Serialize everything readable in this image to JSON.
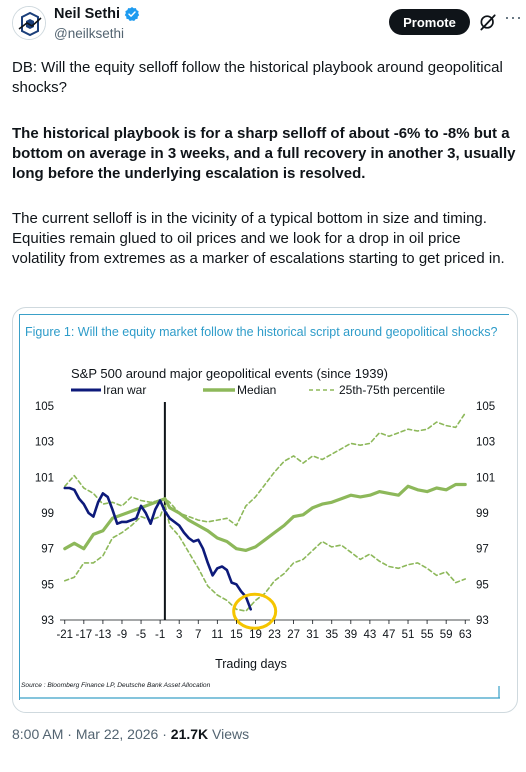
{
  "author": {
    "name": "Neil Sethi",
    "handle": "@neilksethi",
    "avatar_icon": "logo-avatar-icon",
    "verified_color": "#1d9bf0"
  },
  "header": {
    "promote_label": "Promote"
  },
  "tweet": {
    "paragraph_1": "DB: Will the equity selloff follow the historical playbook around geopolitical shocks?",
    "paragraph_2": "The historical playbook is for a sharp selloff of about -6% to -8% but a bottom on average in 3 weeks, and a full recovery in another 3, usually long before the underlying escalation is resolved.",
    "paragraph_3": "The current selloff is in the vicinity of a typical bottom in size and timing. Equities remain glued to oil prices and we look for a drop in oil price volatility from extremes as a marker of escalations starting to get priced in."
  },
  "figure": {
    "caption": "Figure 1: Will the equity market follow the historical script around geopolitical shocks?",
    "source": "Source : Bloomberg Finance LP, Deutsche Bank Asset Allocation"
  },
  "chart_data": {
    "type": "line",
    "title": "S&P 500 around major geopolitical events (since 1939)",
    "xlabel": "Trading days",
    "ylabel": "",
    "xlim": [
      -22,
      64
    ],
    "ylim": [
      93,
      105
    ],
    "x_ticks": [
      -21,
      -17,
      -13,
      -9,
      -5,
      -1,
      3,
      7,
      11,
      15,
      19,
      23,
      27,
      31,
      35,
      39,
      43,
      47,
      51,
      55,
      59,
      63
    ],
    "y_ticks": [
      93,
      95,
      97,
      99,
      101,
      103,
      105
    ],
    "event_line_x": 0,
    "legend_position": "top",
    "colors": {
      "iran": "#0d1a7a",
      "median": "#8db85a",
      "pct": "#8db85a",
      "highlight": "#f5c500"
    },
    "series": [
      {
        "name": "Iran war",
        "style": "solid-thick",
        "x": [
          -21,
          -20,
          -19,
          -18,
          -17,
          -16,
          -15,
          -14,
          -13,
          -12,
          -11,
          -10,
          -9,
          -8,
          -7,
          -6,
          -5,
          -4,
          -3,
          -2,
          -1,
          0,
          1,
          2,
          3,
          4,
          5,
          6,
          7,
          8,
          9,
          10,
          11,
          12,
          13,
          14,
          15,
          16,
          17,
          18
        ],
        "values": [
          100.4,
          100.4,
          100.3,
          99.8,
          99.5,
          99.0,
          98.8,
          99.6,
          100.1,
          99.9,
          99.2,
          98.4,
          98.5,
          98.5,
          98.6,
          98.7,
          99.4,
          99.0,
          98.4,
          99.2,
          99.7,
          99.1,
          98.7,
          98.5,
          98.3,
          97.9,
          97.6,
          97.4,
          97.5,
          97.0,
          96.2,
          95.5,
          95.9,
          96.0,
          95.8,
          95.1,
          95.0,
          94.6,
          94.3,
          93.6
        ]
      },
      {
        "name": "Median",
        "style": "solid-medium",
        "x": [
          -21,
          -19,
          -17,
          -15,
          -13,
          -11,
          -9,
          -7,
          -5,
          -3,
          -1,
          0,
          1,
          3,
          5,
          7,
          9,
          11,
          13,
          15,
          17,
          19,
          21,
          23,
          25,
          27,
          29,
          31,
          33,
          35,
          37,
          39,
          41,
          43,
          45,
          47,
          49,
          51,
          53,
          55,
          57,
          59,
          61,
          63
        ],
        "values": [
          97.0,
          97.3,
          97.0,
          97.8,
          98.0,
          98.7,
          98.9,
          99.1,
          99.3,
          99.5,
          99.7,
          99.8,
          99.3,
          99.0,
          98.6,
          98.3,
          98.0,
          97.6,
          97.4,
          97.0,
          96.9,
          97.1,
          97.5,
          97.9,
          98.3,
          98.8,
          98.9,
          99.3,
          99.5,
          99.6,
          99.8,
          100.0,
          99.9,
          100.0,
          100.2,
          100.1,
          100.0,
          100.5,
          100.3,
          100.2,
          100.4,
          100.3,
          100.6,
          100.6
        ]
      },
      {
        "name": "25th-75th percentile",
        "style": "dashed",
        "x": [
          -21,
          -19,
          -17,
          -15,
          -13,
          -11,
          -9,
          -7,
          -5,
          -3,
          -1,
          0,
          1,
          3,
          5,
          7,
          9,
          11,
          13,
          15,
          17,
          19,
          21,
          23,
          25,
          27,
          29,
          31,
          33,
          35,
          37,
          39,
          41,
          43,
          45,
          47,
          49,
          51,
          53,
          55,
          57,
          59,
          61,
          63
        ],
        "values": [
          100.5,
          101.1,
          100.4,
          100.1,
          99.5,
          99.6,
          99.4,
          99.9,
          99.7,
          99.6,
          99.7,
          99.8,
          99.6,
          99.0,
          98.8,
          98.6,
          98.5,
          98.6,
          98.7,
          98.3,
          99.4,
          99.9,
          100.6,
          101.3,
          101.9,
          102.2,
          101.8,
          102.2,
          102.0,
          102.3,
          102.6,
          102.9,
          102.8,
          102.9,
          103.5,
          103.3,
          103.5,
          103.7,
          103.6,
          103.7,
          104.1,
          103.9,
          103.8,
          104.6
        ]
      },
      {
        "name": "",
        "style": "dashed",
        "x": [
          -21,
          -19,
          -17,
          -15,
          -13,
          -11,
          -9,
          -7,
          -5,
          -3,
          -1,
          0,
          1,
          3,
          5,
          7,
          9,
          11,
          13,
          15,
          17,
          19,
          21,
          23,
          25,
          27,
          29,
          31,
          33,
          35,
          37,
          39,
          41,
          43,
          45,
          47,
          49,
          51,
          53,
          55,
          57,
          59,
          61,
          63
        ],
        "values": [
          95.2,
          95.4,
          96.2,
          96.2,
          96.6,
          97.6,
          97.9,
          98.3,
          98.8,
          98.6,
          98.8,
          99.5,
          98.3,
          97.7,
          96.8,
          95.9,
          94.9,
          94.4,
          94.1,
          93.6,
          93.5,
          94.1,
          94.5,
          95.2,
          95.6,
          96.2,
          96.4,
          96.9,
          97.4,
          97.1,
          97.2,
          96.8,
          96.4,
          96.7,
          96.3,
          96.0,
          95.9,
          96.1,
          96.2,
          95.9,
          95.5,
          95.7,
          95.1,
          95.3
        ]
      }
    ]
  },
  "meta": {
    "time": "8:00 AM",
    "separator": "·",
    "date": "Mar 22, 2026",
    "views_count": "21.7K",
    "views_label": "Views"
  }
}
